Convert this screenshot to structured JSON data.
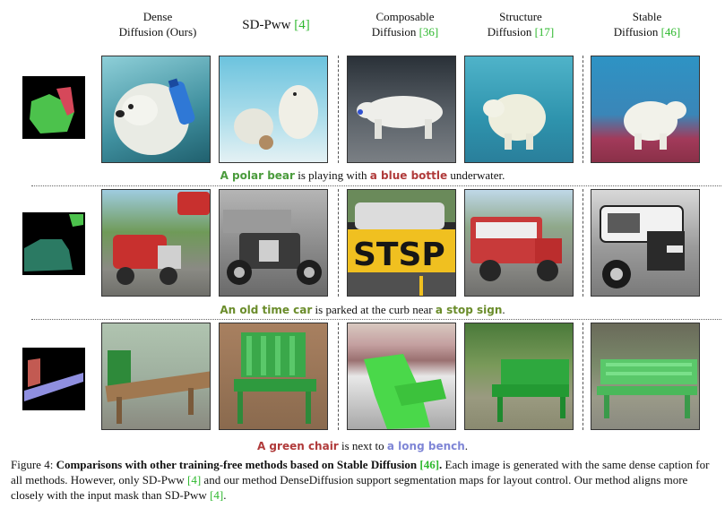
{
  "headers": [
    {
      "line1": "Dense",
      "line2": "Diffusion (Ours)",
      "ref": ""
    },
    {
      "line1": "",
      "line2": "SD-Pww",
      "ref": "[4]"
    },
    {
      "line1": "Composable",
      "line2": "Diffusion",
      "ref": "[36]"
    },
    {
      "line1": "Structure",
      "line2": "Diffusion",
      "ref": "[17]"
    },
    {
      "line1": "Stable",
      "line2": "Diffusion",
      "ref": "[46]"
    }
  ],
  "rows": [
    {
      "caption": {
        "part1": "A polar bear",
        "part2": " is playing with ",
        "part3": "a blue bottle",
        "part4": " underwater."
      }
    },
    {
      "caption": {
        "part1": "An old time car",
        "part2": " is parked at the curb near ",
        "part3": "a stop sign",
        "part4": "."
      }
    },
    {
      "caption": {
        "part1": "A green chair",
        "part2": " is next to ",
        "part3": "a long bench",
        "part4": "."
      }
    }
  ],
  "figure_caption": {
    "label": "Figure 4: ",
    "bold": "Comparisons with other training-free methods based on Stable Diffusion ",
    "bold_ref": "[46]",
    "bold_end": ".",
    "text1": " Each image is generated with the same dense caption for all methods. However, only SD-Pww ",
    "ref1": "[4]",
    "text2": " and our method DenseDiffusion support segmentation maps for layout control. Our method aligns more closely with the input mask than SD-Pww ",
    "ref2": "[4]",
    "text3": "."
  }
}
